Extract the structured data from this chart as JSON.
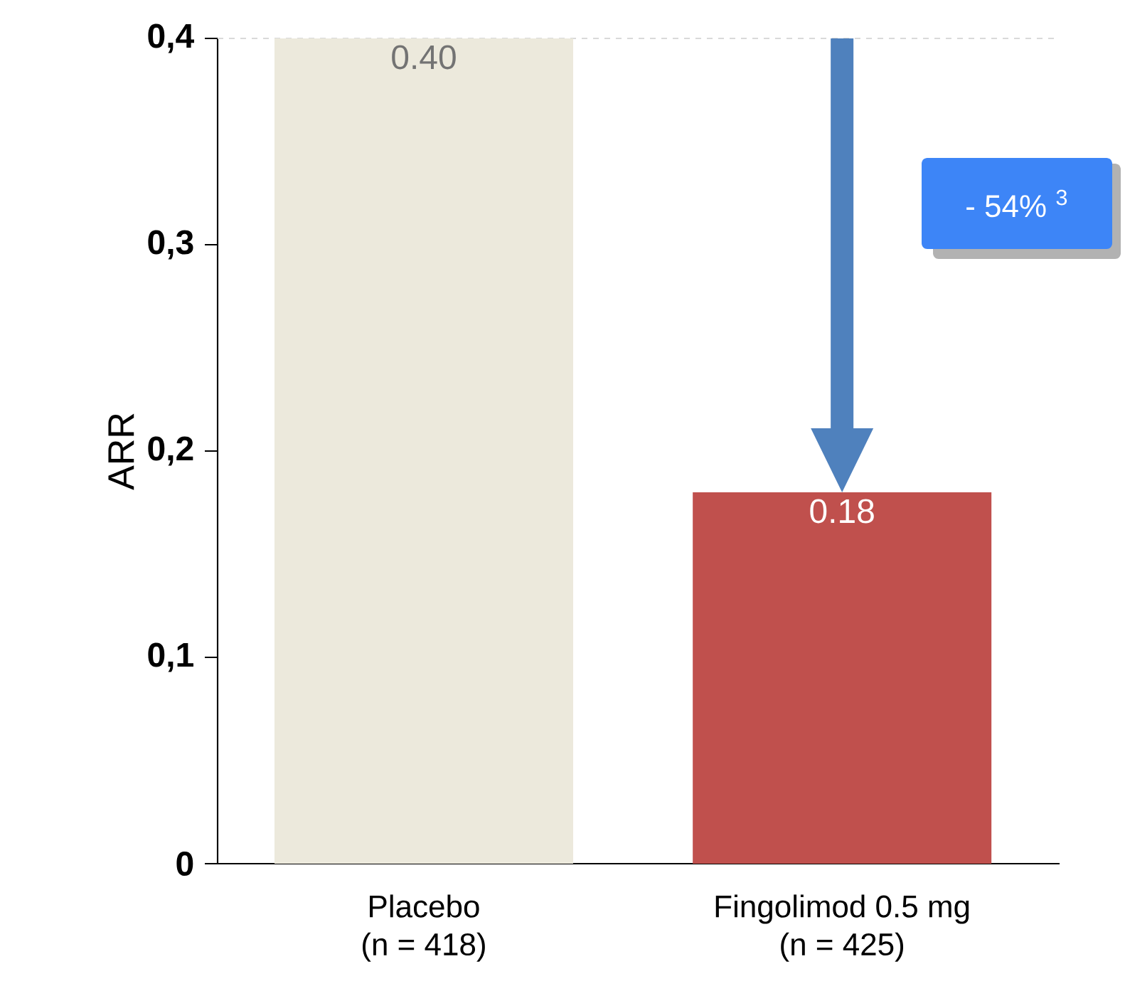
{
  "chart_data": {
    "type": "bar",
    "categories": [
      "Placebo\n(n = 418)",
      "Fingolimod 0.5 mg\n(n = 425)"
    ],
    "values": [
      0.4,
      0.18
    ],
    "colors": [
      "#ece9dc",
      "#c0504d"
    ],
    "value_labels": [
      "0.40",
      "0.18"
    ],
    "ylabel": "ARR",
    "ylim": [
      0,
      0.4
    ],
    "yticks": [
      0,
      {
        "value": 0.1,
        "label": "0,1"
      },
      {
        "value": 0.2,
        "label": "0,2"
      },
      {
        "value": 0.3,
        "label": "0,3"
      },
      {
        "value": 0.4,
        "label": "0,4"
      }
    ],
    "ref_lines": [
      {
        "axis": "y",
        "value": 0.4,
        "color": "#d9d9d9",
        "line_style": "dashed"
      }
    ],
    "annotations": [
      "- 54% $^{3}$"
    ],
    "grid": false,
    "legend": false
  }
}
